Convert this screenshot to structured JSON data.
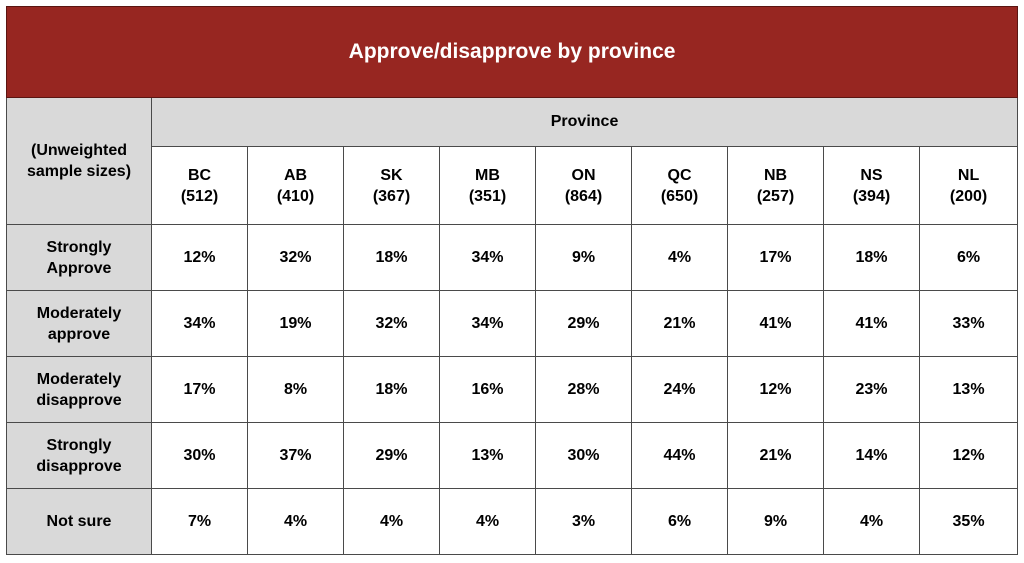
{
  "chart_data": {
    "type": "table",
    "title": "Approve/disapprove by province",
    "corner_label": "(Unweighted sample sizes)",
    "group_header": "Province",
    "columns": [
      {
        "code": "BC",
        "sample": "(512)"
      },
      {
        "code": "AB",
        "sample": "(410)"
      },
      {
        "code": "SK",
        "sample": "(367)"
      },
      {
        "code": "MB",
        "sample": "(351)"
      },
      {
        "code": "ON",
        "sample": "(864)"
      },
      {
        "code": "QC",
        "sample": "(650)"
      },
      {
        "code": "NB",
        "sample": "(257)"
      },
      {
        "code": "NS",
        "sample": "(394)"
      },
      {
        "code": "NL",
        "sample": "(200)"
      }
    ],
    "rows": [
      {
        "label_line1": "Strongly",
        "label_line2": "Approve",
        "values": [
          "12%",
          "32%",
          "18%",
          "34%",
          "9%",
          "4%",
          "17%",
          "18%",
          "6%"
        ]
      },
      {
        "label_line1": "Moderately",
        "label_line2": "approve",
        "values": [
          "34%",
          "19%",
          "32%",
          "34%",
          "29%",
          "21%",
          "41%",
          "41%",
          "33%"
        ]
      },
      {
        "label_line1": "Moderately",
        "label_line2": "disapprove",
        "values": [
          "17%",
          "8%",
          "18%",
          "16%",
          "28%",
          "24%",
          "12%",
          "23%",
          "13%"
        ]
      },
      {
        "label_line1": "Strongly",
        "label_line2": "disapprove",
        "values": [
          "30%",
          "37%",
          "29%",
          "13%",
          "30%",
          "44%",
          "21%",
          "14%",
          "12%"
        ]
      },
      {
        "label_line1": "Not sure",
        "label_line2": "",
        "values": [
          "7%",
          "4%",
          "4%",
          "4%",
          "3%",
          "6%",
          "9%",
          "4%",
          "35%"
        ]
      }
    ],
    "colors": {
      "title_bg": "#972621",
      "header_bg": "#d9d9d9",
      "cell_bg": "#ffffff"
    }
  }
}
